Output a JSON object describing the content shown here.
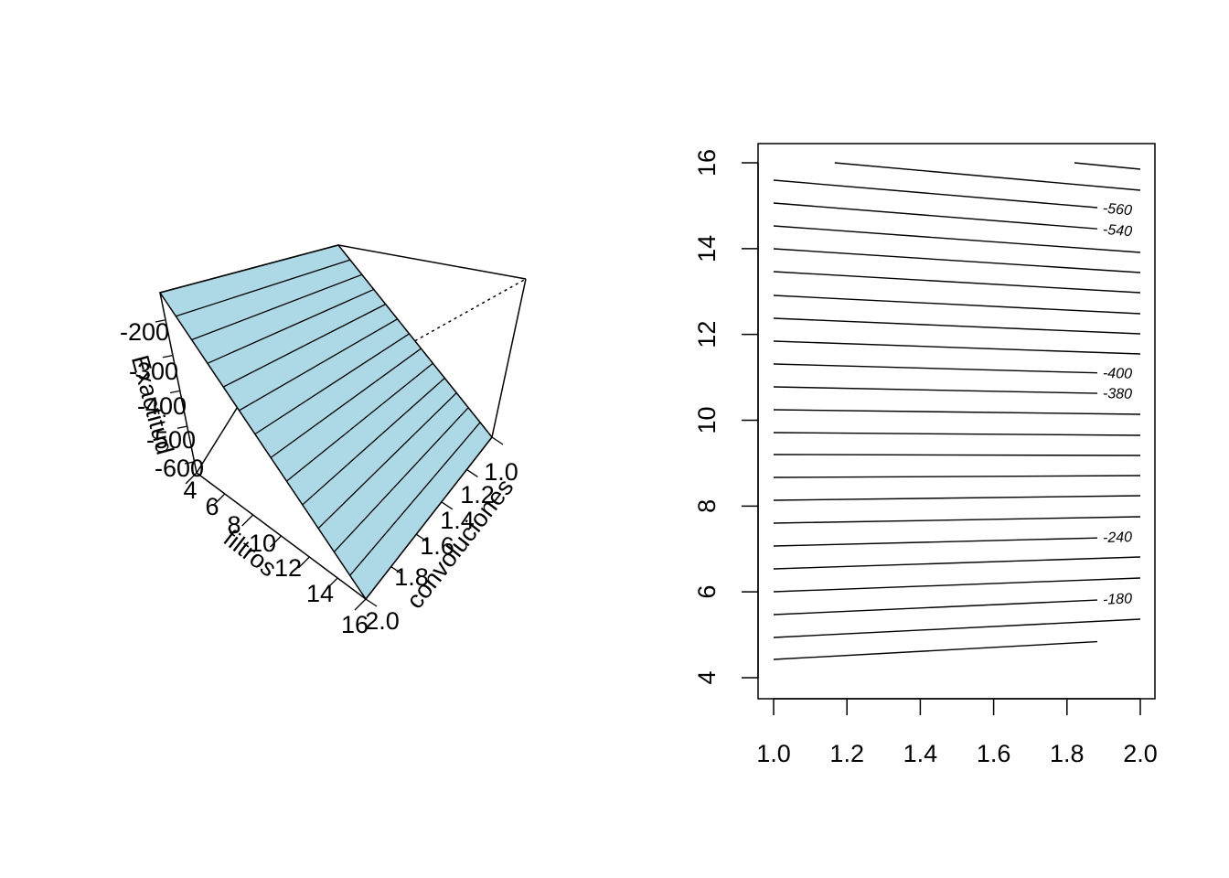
{
  "chart_data": [
    {
      "type": "surface3d",
      "x_label": "filtros",
      "y_label": "convoluciones",
      "z_label": "Exactitud",
      "x_ticks": [
        "4",
        "6",
        "8",
        "10",
        "12",
        "14",
        "16"
      ],
      "y_ticks": [
        "1.0",
        "1.2",
        "1.4",
        "1.6",
        "1.8",
        "2.0"
      ],
      "z_ticks": [
        "-200",
        "-300",
        "-400",
        "-500",
        "-600"
      ],
      "xlim": [
        4,
        16
      ],
      "ylim": [
        1.0,
        2.0
      ],
      "zlim": [
        -600,
        -200
      ],
      "surface_color": "#add8e6",
      "mesh_lines": 12
    },
    {
      "type": "contour",
      "x_ticks": [
        "1.0",
        "1.2",
        "1.4",
        "1.6",
        "1.8",
        "2.0"
      ],
      "y_ticks": [
        "4",
        "6",
        "8",
        "10",
        "12",
        "14",
        "16"
      ],
      "xlim": [
        1.0,
        2.0
      ],
      "ylim": [
        4,
        16
      ],
      "levels": [
        -600,
        -580,
        -560,
        -540,
        -520,
        -500,
        -480,
        -460,
        -440,
        -420,
        -400,
        -380,
        -360,
        -340,
        -320,
        -300,
        -280,
        -260,
        -240,
        -220,
        -200,
        -180,
        -160,
        -140
      ],
      "level_labels": [
        {
          "label": "-560",
          "level": -560
        },
        {
          "label": "-540",
          "level": -540
        },
        {
          "label": "-400",
          "level": -400
        },
        {
          "label": "-380",
          "level": -380
        },
        {
          "label": "-240",
          "level": -240
        },
        {
          "label": "-180",
          "level": -180
        }
      ]
    }
  ]
}
